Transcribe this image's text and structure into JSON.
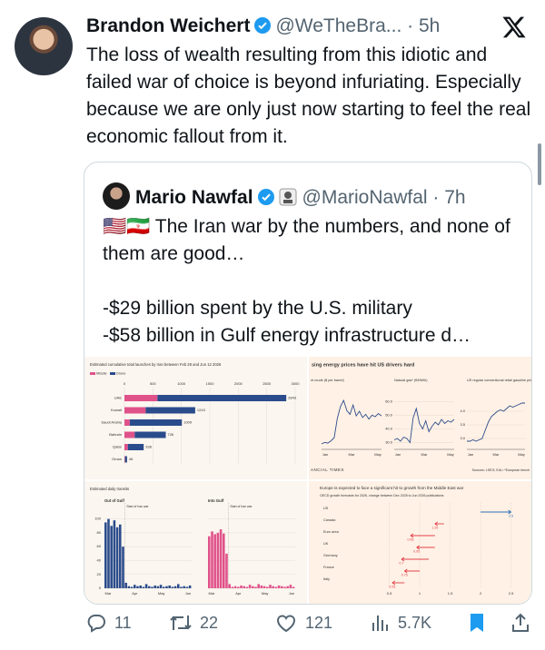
{
  "tweet": {
    "author": "Brandon Weichert",
    "handle": "@WeTheBra...",
    "separator": "·",
    "time": "5h",
    "text": "The loss of wealth resulting from this idiotic and failed war of choice is beyond infuriating. Especially because we are only just now starting to feel the real economic fallout from it."
  },
  "quote": {
    "author": "Mario Nawfal",
    "handle": "@MarioNawfal",
    "separator": "·",
    "time": "7h",
    "paragraphs": [
      "🇺🇸🇮🇷 The Iran war by the numbers, and none of them are good…",
      "",
      "-$29 billion spent by the U.S. military",
      "-$58 billion in Gulf energy infrastructure d…"
    ]
  },
  "media": [
    {
      "type": "bar",
      "title": "Estimated cumulative total launches by Iran between Feb 28 and Jun 12 2026",
      "categories": [
        "UAE",
        "Kuwait",
        "Saudi Arabia",
        "Bahrain",
        "Qatar",
        "Oman"
      ],
      "series": [
        {
          "name": "Missile",
          "color": "#e0528a",
          "values": [
            580,
            374,
            93,
            180,
            60,
            10
          ]
        },
        {
          "name": "Drone",
          "color": "#2b4c8c",
          "values": [
            2263,
            869,
            916,
            546,
            278,
            36
          ]
        }
      ],
      "totals": [
        2843,
        1243,
        1009,
        726,
        338,
        46
      ],
      "xlim": [
        0,
        3000
      ],
      "xticks": [
        0,
        500,
        1000,
        1500,
        2000,
        2500,
        3000
      ]
    },
    {
      "type": "line",
      "title": "sing energy prices have hit US drivers hard",
      "panels": [
        {
          "title": "nt crude ($ per barrel)",
          "color": "#2b4c8c",
          "ylim": [
            55,
            125
          ],
          "yticks": [],
          "values": [
            62,
            64,
            63,
            66,
            70,
            95,
            110,
            118,
            105,
            100,
            112,
            98,
            104,
            96,
            100,
            94,
            99,
            97,
            101,
            98
          ]
        },
        {
          "title": "Natural gas* (€/MWh)",
          "color": "#2b4c8c",
          "ylim": [
            25,
            65
          ],
          "yticks": [
            {
              "value": 30,
              "label": "30.0"
            },
            {
              "value": 40,
              "label": "40.0"
            },
            {
              "value": 50,
              "label": "50.0"
            },
            {
              "value": 60,
              "label": "60.0"
            }
          ],
          "values": [
            32,
            33,
            31,
            34,
            33,
            30,
            48,
            55,
            44,
            40,
            46,
            38,
            42,
            45,
            43,
            47,
            44,
            46,
            45,
            47
          ]
        },
        {
          "title": "US regular conventional retail gasoline price ($ per gallon)",
          "color": "#2b4c8c",
          "ylim": [
            2.6,
            4.6
          ],
          "yticks": [
            {
              "value": 3,
              "label": "3.0"
            },
            3.5,
            {
              "value": 4,
              "label": "4.0"
            }
          ],
          "values": [
            2.9,
            2.9,
            2.95,
            2.9,
            2.95,
            3.0,
            3.3,
            3.6,
            3.8,
            3.9,
            4.0,
            4.05,
            4.0,
            4.1,
            4.2,
            4.15,
            4.2,
            4.25,
            4.3,
            4.3
          ]
        }
      ],
      "xlabels": [
        "Jan",
        "Mar",
        "May"
      ],
      "source": "ANCIAL TIMES",
      "note": "Sources: LSEG; EIA • *European bench"
    },
    {
      "type": "transits",
      "title": "Estimated daily transits",
      "annotation": "Start of Iran war",
      "ylim": [
        0,
        110
      ],
      "yticks": [
        0,
        20,
        40,
        60,
        80,
        100
      ],
      "xlabels": [
        "Mar",
        "Apr",
        "May",
        "Jun"
      ],
      "series": [
        {
          "name": "Out of Gulf",
          "color": "#2b4c8c",
          "values": [
            95,
            100,
            90,
            98,
            88,
            92,
            60,
            8,
            3,
            2,
            5,
            3,
            4,
            2,
            6,
            3,
            2,
            4,
            3,
            5,
            2,
            3,
            4,
            2,
            3,
            6,
            2,
            3,
            2,
            4
          ]
        },
        {
          "name": "Into Gulf",
          "color": "#e0528a",
          "values": [
            75,
            82,
            78,
            80,
            85,
            79,
            50,
            6,
            2,
            3,
            2,
            4,
            3,
            2,
            5,
            3,
            2,
            6,
            4,
            3,
            2,
            5,
            3,
            2,
            4,
            3,
            2,
            3,
            5,
            2
          ]
        }
      ]
    },
    {
      "type": "arrow",
      "title": "Europe is expected to face a significant hit to growth from the Middle East war",
      "subtitle": "OECD growth forecasts for 2026, change between Dec 2025 to Jun 2026 publications",
      "categories": [
        "US",
        "Canada",
        "Euro area",
        "UK",
        "Germany",
        "France",
        "Italy"
      ],
      "from": [
        2.0,
        1.4,
        1.25,
        1.25,
        1.15,
        1.0,
        0.75
      ],
      "to": [
        2.5,
        1.25,
        0.85,
        0.95,
        0.7,
        0.75,
        0.55
      ],
      "xlim": [
        0,
        2.7
      ],
      "xticks": [
        0.5,
        1,
        1.5,
        2,
        2.5
      ]
    }
  ],
  "actions": {
    "replies": "11",
    "retweets": "22",
    "likes": "121",
    "views": "5.7K"
  }
}
